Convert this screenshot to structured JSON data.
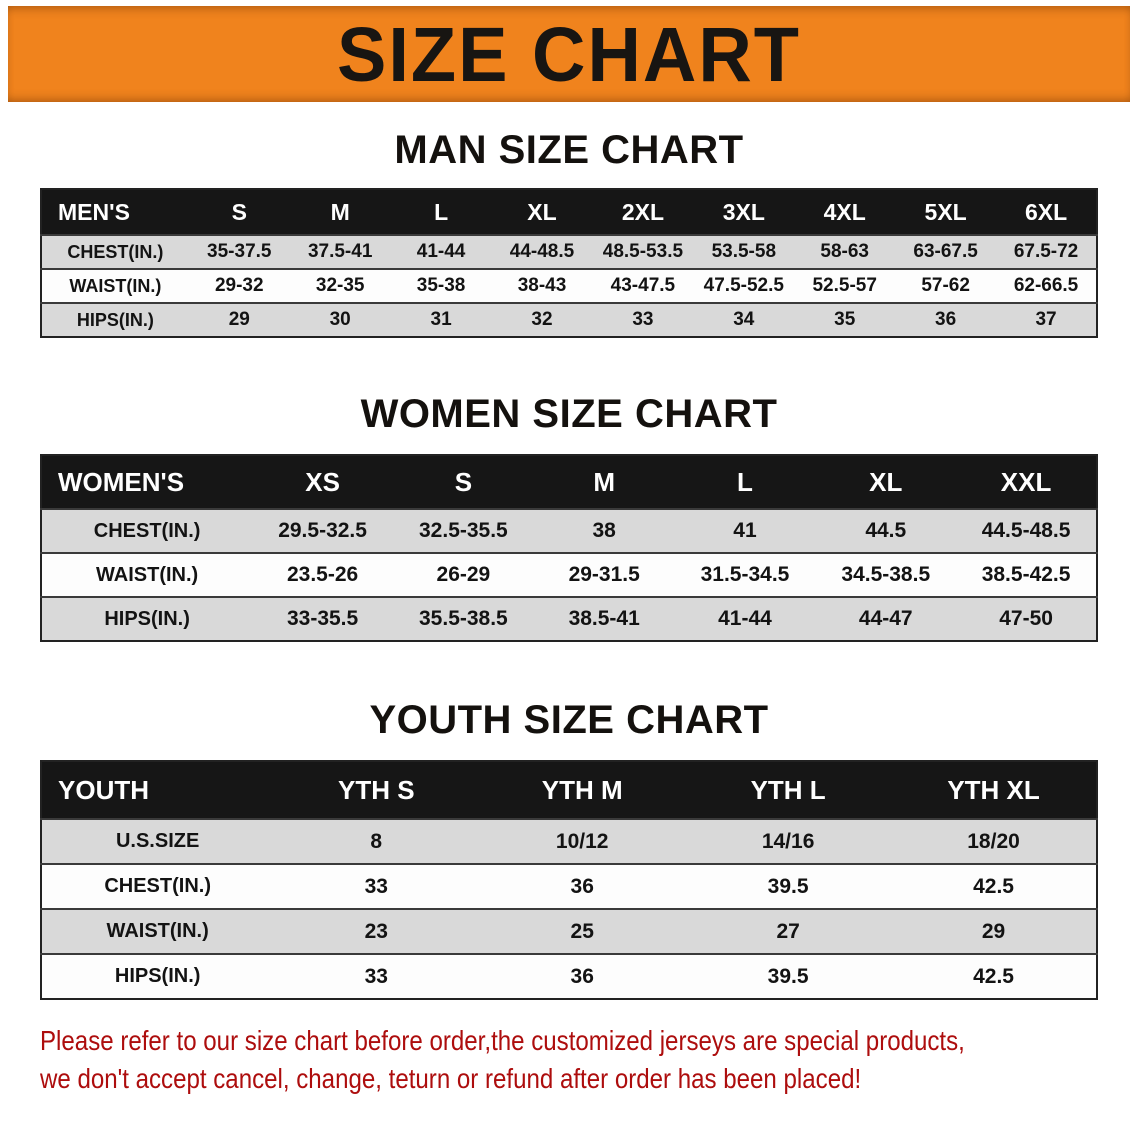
{
  "banner": {
    "title": "SIZE CHART"
  },
  "colors": {
    "banner_bg": "#f0831d",
    "table_header_bg": "#161616",
    "row_stripe": "#d9d9d9",
    "footer_text": "#ad0d0d"
  },
  "sections": [
    {
      "heading": "MAN SIZE CHART",
      "table": {
        "header": [
          "MEN'S",
          "S",
          "M",
          "L",
          "XL",
          "2XL",
          "3XL",
          "4XL",
          "5XL",
          "6XL"
        ],
        "rows": [
          [
            "CHEST(IN.)",
            "35-37.5",
            "37.5-41",
            "41-44",
            "44-48.5",
            "48.5-53.5",
            "53.5-58",
            "58-63",
            "63-67.5",
            "67.5-72"
          ],
          [
            "WAIST(IN.)",
            "29-32",
            "32-35",
            "35-38",
            "38-43",
            "43-47.5",
            "47.5-52.5",
            "52.5-57",
            "57-62",
            "62-66.5"
          ],
          [
            "HIPS(IN.)",
            "29",
            "30",
            "31",
            "32",
            "33",
            "34",
            "35",
            "36",
            "37"
          ]
        ]
      }
    },
    {
      "heading": "WOMEN SIZE CHART",
      "table": {
        "header": [
          "WOMEN'S",
          "XS",
          "S",
          "M",
          "L",
          "XL",
          "XXL"
        ],
        "rows": [
          [
            "CHEST(IN.)",
            "29.5-32.5",
            "32.5-35.5",
            "38",
            "41",
            "44.5",
            "44.5-48.5"
          ],
          [
            "WAIST(IN.)",
            "23.5-26",
            "26-29",
            "29-31.5",
            "31.5-34.5",
            "34.5-38.5",
            "38.5-42.5"
          ],
          [
            "HIPS(IN.)",
            "33-35.5",
            "35.5-38.5",
            "38.5-41",
            "41-44",
            "44-47",
            "47-50"
          ]
        ]
      }
    },
    {
      "heading": "YOUTH SIZE CHART",
      "table": {
        "header": [
          "YOUTH",
          "YTH S",
          "YTH M",
          "YTH L",
          "YTH XL"
        ],
        "rows": [
          [
            "U.S.SIZE",
            "8",
            "10/12",
            "14/16",
            "18/20"
          ],
          [
            "CHEST(IN.)",
            "33",
            "36",
            "39.5",
            "42.5"
          ],
          [
            "WAIST(IN.)",
            "23",
            "25",
            "27",
            "29"
          ],
          [
            "HIPS(IN.)",
            "33",
            "36",
            "39.5",
            "42.5"
          ]
        ]
      }
    }
  ],
  "footer": {
    "line1": "Please refer to our size chart before order,the customized jerseys are special products,",
    "line2": "we don't accept cancel, change, teturn or refund after order has been placed!"
  }
}
